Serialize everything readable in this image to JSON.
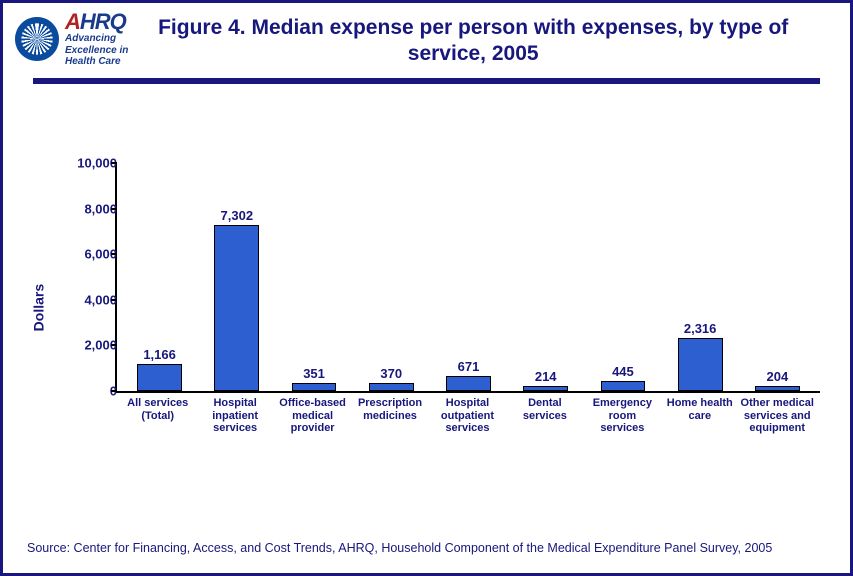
{
  "logo": {
    "ahrq_text": "AHRQ",
    "tagline_l1": "Advancing",
    "tagline_l2": "Excellence in",
    "tagline_l3": "Health Care"
  },
  "title": "Figure 4. Median expense per person with expenses, by type of service, 2005",
  "chart": {
    "type": "bar",
    "ylabel": "Dollars",
    "ylim": [
      0,
      10000
    ],
    "ytick_step": 2000,
    "yticks": [
      {
        "v": 0,
        "label": "0"
      },
      {
        "v": 2000,
        "label": "2,000"
      },
      {
        "v": 4000,
        "label": "4,000"
      },
      {
        "v": 6000,
        "label": "6,000"
      },
      {
        "v": 8000,
        "label": "8,000"
      },
      {
        "v": 10000,
        "label": "10,000"
      }
    ],
    "bar_color": "#2e5fd1",
    "bar_border": "#000000",
    "title_color": "#17177d",
    "axis_color": "#000000",
    "label_color": "#17177d",
    "background_color": "#ffffff",
    "title_fontsize": 21,
    "label_fontsize": 11,
    "value_fontsize": 13,
    "bar_width": 0.58,
    "categories": [
      "All services (Total)",
      "Hospital inpatient services",
      "Office-based medical provider",
      "Prescription medicines",
      "Hospital outpatient services",
      "Dental services",
      "Emergency room services",
      "Home health care",
      "Other medical services and equipment"
    ],
    "values": [
      1166,
      7302,
      351,
      370,
      671,
      214,
      445,
      2316,
      204
    ],
    "value_labels": [
      "1,166",
      "7,302",
      "351",
      "370",
      "671",
      "214",
      "445",
      "2,316",
      "204"
    ]
  },
  "source": "Source: Center for Financing, Access, and Cost Trends, AHRQ, Household Component of the Medical Expenditure Panel Survey, 2005"
}
